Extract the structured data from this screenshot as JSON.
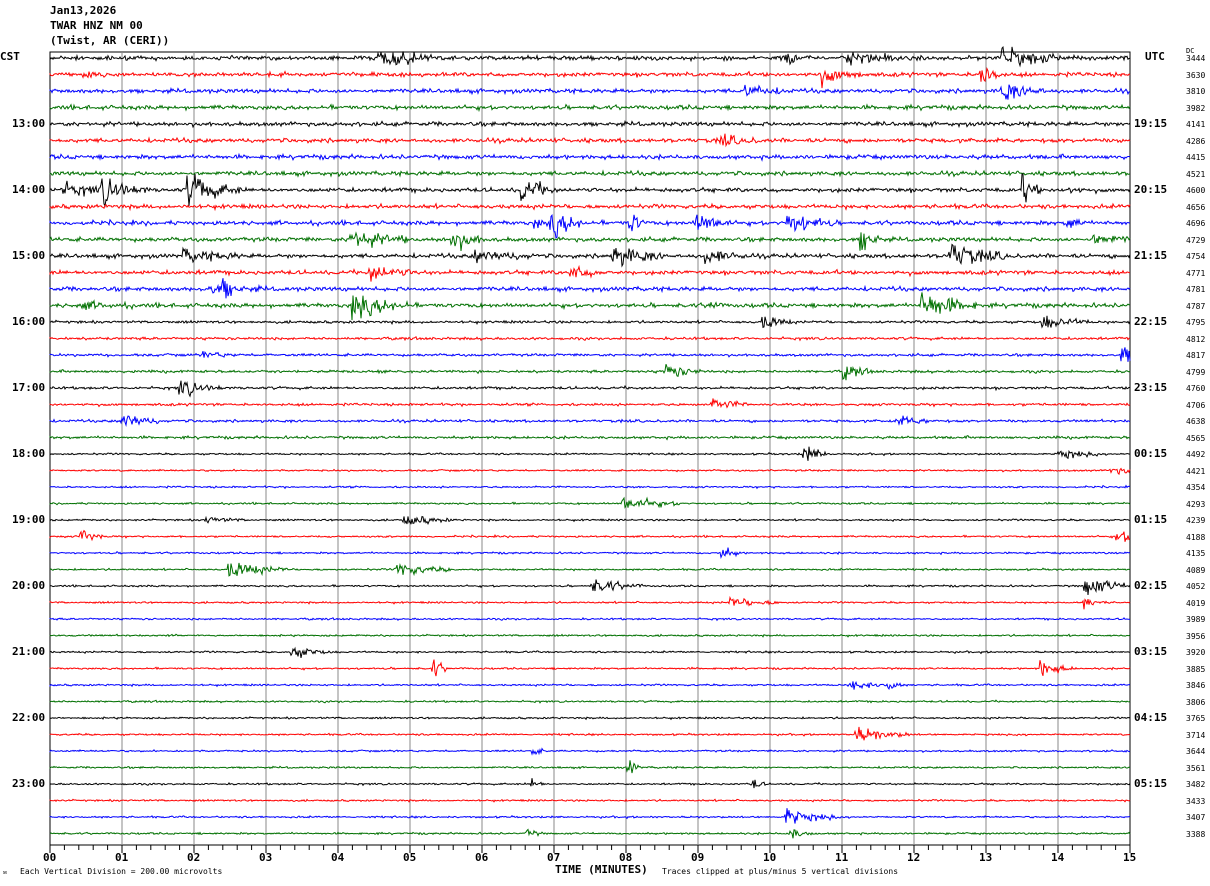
{
  "header": {
    "date": "Jan13,2026",
    "station": "TWAR HNZ NM 00",
    "location": "(Twist, AR (CERI))"
  },
  "chart_data": {
    "type": "line",
    "description_type": "helicorder",
    "left_timezone": "CST",
    "right_timezone": "UTC",
    "dc_header": "DC",
    "trace_colors": [
      "#000000",
      "#ff0000",
      "#0000ff",
      "#007000"
    ],
    "trace_count": 48,
    "left_hour_labels": [
      "13:00",
      "14:00",
      "15:00",
      "16:00",
      "17:00",
      "18:00",
      "19:00",
      "20:00",
      "21:00",
      "22:00",
      "23:00"
    ],
    "right_hour_labels": [
      "19:15",
      "20:15",
      "21:15",
      "22:15",
      "23:15",
      "00:15",
      "01:15",
      "02:15",
      "03:15",
      "04:15",
      "05:15"
    ],
    "dc_values": [
      "3444",
      "3630",
      "3810",
      "3982",
      "4141",
      "4286",
      "4415",
      "4521",
      "4600",
      "4656",
      "4696",
      "4729",
      "4754",
      "4771",
      "4781",
      "4787",
      "4795",
      "4812",
      "4817",
      "4799",
      "4760",
      "4706",
      "4638",
      "4565",
      "4492",
      "4421",
      "4354",
      "4293",
      "4239",
      "4188",
      "4135",
      "4089",
      "4052",
      "4019",
      "3989",
      "3956",
      "3920",
      "3885",
      "3846",
      "3806",
      "3765",
      "3714",
      "3644",
      "3561",
      "3482",
      "3433",
      "3407",
      "3388"
    ],
    "x_ticks": [
      "00",
      "01",
      "02",
      "03",
      "04",
      "05",
      "06",
      "07",
      "08",
      "09",
      "10",
      "11",
      "12",
      "13",
      "14",
      "15"
    ],
    "xlim": [
      0,
      15
    ],
    "xlabel": "TIME (MINUTES)",
    "grid": true
  },
  "footer": {
    "scale_note": "Each Vertical Division =  200.00 microvolts",
    "clip_note": "Traces clipped at plus/minus 5 vertical divisions",
    "corner_mark": "ᴍ"
  }
}
